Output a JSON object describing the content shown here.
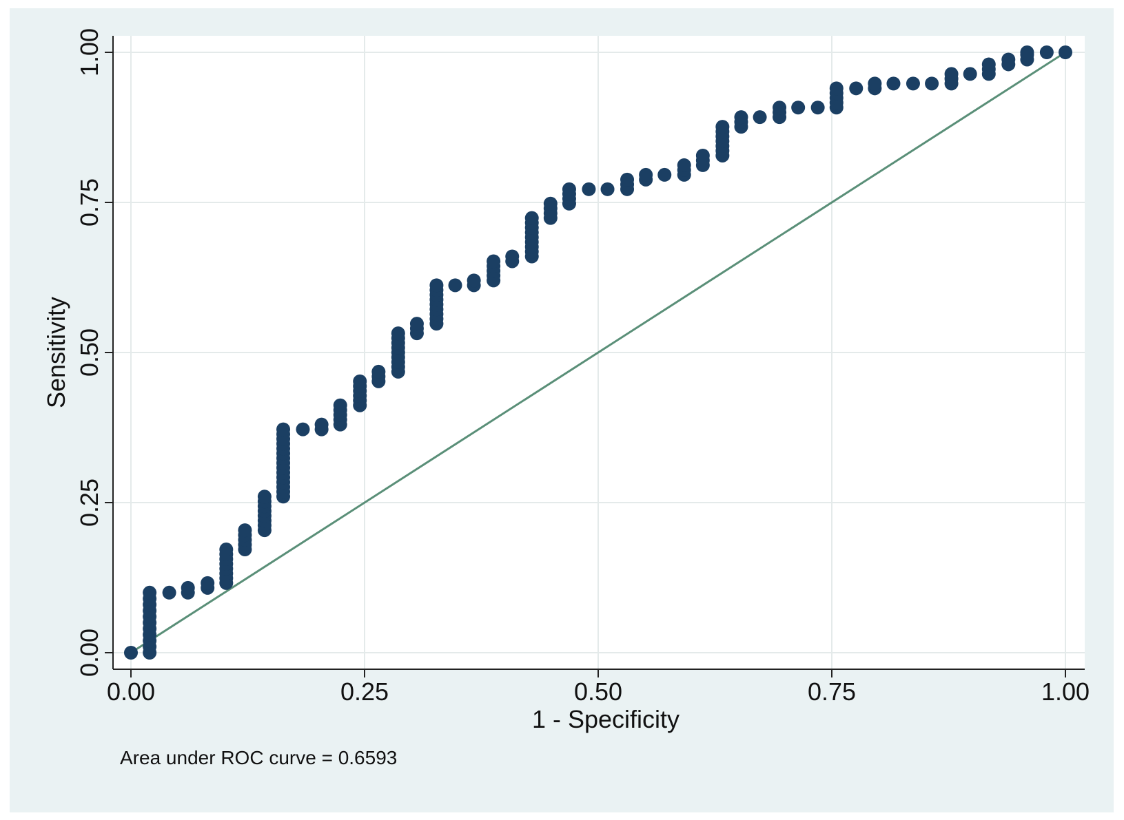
{
  "chart_data": {
    "type": "scatter",
    "title": "",
    "xlabel": "1 - Specificity",
    "ylabel": "Sensitivity",
    "xlim": [
      0,
      1
    ],
    "ylim": [
      0,
      1
    ],
    "x_ticks": [
      "0.00",
      "0.25",
      "0.50",
      "0.75",
      "1.00"
    ],
    "y_ticks": [
      "0.00",
      "0.25",
      "0.50",
      "0.75",
      "1.00"
    ],
    "grid": true,
    "legend": "none",
    "annotation": "Area under ROC curve = 0.6593",
    "colors": {
      "background": "#eaf2f3",
      "plot_area": "#ffffff",
      "points": "#1b3f63",
      "reference_line": "#5a8f78",
      "grid": "#e4eaea"
    },
    "series": [
      {
        "role": "roc-curve",
        "points": [
          [
            0.0,
            0.0
          ],
          [
            0.02,
            0.0
          ],
          [
            0.02,
            0.01
          ],
          [
            0.02,
            0.02
          ],
          [
            0.02,
            0.03
          ],
          [
            0.02,
            0.04
          ],
          [
            0.02,
            0.05
          ],
          [
            0.02,
            0.06
          ],
          [
            0.02,
            0.07
          ],
          [
            0.02,
            0.08
          ],
          [
            0.02,
            0.09
          ],
          [
            0.02,
            0.1
          ],
          [
            0.041,
            0.1
          ],
          [
            0.061,
            0.1
          ],
          [
            0.061,
            0.108
          ],
          [
            0.082,
            0.108
          ],
          [
            0.082,
            0.116
          ],
          [
            0.102,
            0.116
          ],
          [
            0.102,
            0.124
          ],
          [
            0.102,
            0.132
          ],
          [
            0.102,
            0.14
          ],
          [
            0.102,
            0.148
          ],
          [
            0.102,
            0.156
          ],
          [
            0.102,
            0.164
          ],
          [
            0.102,
            0.172
          ],
          [
            0.122,
            0.172
          ],
          [
            0.122,
            0.18
          ],
          [
            0.122,
            0.188
          ],
          [
            0.122,
            0.196
          ],
          [
            0.122,
            0.204
          ],
          [
            0.143,
            0.204
          ],
          [
            0.143,
            0.212
          ],
          [
            0.143,
            0.22
          ],
          [
            0.143,
            0.228
          ],
          [
            0.143,
            0.236
          ],
          [
            0.143,
            0.244
          ],
          [
            0.143,
            0.252
          ],
          [
            0.143,
            0.26
          ],
          [
            0.163,
            0.26
          ],
          [
            0.163,
            0.268
          ],
          [
            0.163,
            0.276
          ],
          [
            0.163,
            0.284
          ],
          [
            0.163,
            0.292
          ],
          [
            0.163,
            0.3
          ],
          [
            0.163,
            0.308
          ],
          [
            0.163,
            0.316
          ],
          [
            0.163,
            0.324
          ],
          [
            0.163,
            0.332
          ],
          [
            0.163,
            0.34
          ],
          [
            0.163,
            0.348
          ],
          [
            0.163,
            0.356
          ],
          [
            0.163,
            0.364
          ],
          [
            0.163,
            0.372
          ],
          [
            0.184,
            0.372
          ],
          [
            0.204,
            0.372
          ],
          [
            0.204,
            0.38
          ],
          [
            0.224,
            0.38
          ],
          [
            0.224,
            0.388
          ],
          [
            0.224,
            0.396
          ],
          [
            0.224,
            0.404
          ],
          [
            0.224,
            0.412
          ],
          [
            0.245,
            0.412
          ],
          [
            0.245,
            0.42
          ],
          [
            0.245,
            0.428
          ],
          [
            0.245,
            0.436
          ],
          [
            0.245,
            0.444
          ],
          [
            0.245,
            0.452
          ],
          [
            0.265,
            0.452
          ],
          [
            0.265,
            0.46
          ],
          [
            0.265,
            0.468
          ],
          [
            0.286,
            0.468
          ],
          [
            0.286,
            0.476
          ],
          [
            0.286,
            0.484
          ],
          [
            0.286,
            0.492
          ],
          [
            0.286,
            0.5
          ],
          [
            0.286,
            0.508
          ],
          [
            0.286,
            0.516
          ],
          [
            0.286,
            0.524
          ],
          [
            0.286,
            0.532
          ],
          [
            0.306,
            0.532
          ],
          [
            0.306,
            0.54
          ],
          [
            0.306,
            0.548
          ],
          [
            0.327,
            0.548
          ],
          [
            0.327,
            0.556
          ],
          [
            0.327,
            0.564
          ],
          [
            0.327,
            0.572
          ],
          [
            0.327,
            0.58
          ],
          [
            0.327,
            0.588
          ],
          [
            0.327,
            0.596
          ],
          [
            0.327,
            0.604
          ],
          [
            0.327,
            0.612
          ],
          [
            0.347,
            0.612
          ],
          [
            0.367,
            0.612
          ],
          [
            0.367,
            0.62
          ],
          [
            0.388,
            0.62
          ],
          [
            0.388,
            0.628
          ],
          [
            0.388,
            0.636
          ],
          [
            0.388,
            0.644
          ],
          [
            0.388,
            0.652
          ],
          [
            0.408,
            0.652
          ],
          [
            0.408,
            0.66
          ],
          [
            0.429,
            0.66
          ],
          [
            0.429,
            0.668
          ],
          [
            0.429,
            0.676
          ],
          [
            0.429,
            0.684
          ],
          [
            0.429,
            0.692
          ],
          [
            0.429,
            0.7
          ],
          [
            0.429,
            0.708
          ],
          [
            0.429,
            0.716
          ],
          [
            0.429,
            0.724
          ],
          [
            0.449,
            0.724
          ],
          [
            0.449,
            0.732
          ],
          [
            0.449,
            0.74
          ],
          [
            0.449,
            0.748
          ],
          [
            0.469,
            0.748
          ],
          [
            0.469,
            0.756
          ],
          [
            0.469,
            0.764
          ],
          [
            0.469,
            0.772
          ],
          [
            0.49,
            0.772
          ],
          [
            0.51,
            0.772
          ],
          [
            0.531,
            0.772
          ],
          [
            0.531,
            0.78
          ],
          [
            0.531,
            0.788
          ],
          [
            0.551,
            0.788
          ],
          [
            0.551,
            0.796
          ],
          [
            0.571,
            0.796
          ],
          [
            0.592,
            0.796
          ],
          [
            0.592,
            0.804
          ],
          [
            0.592,
            0.812
          ],
          [
            0.612,
            0.812
          ],
          [
            0.612,
            0.82
          ],
          [
            0.612,
            0.828
          ],
          [
            0.633,
            0.828
          ],
          [
            0.633,
            0.836
          ],
          [
            0.633,
            0.844
          ],
          [
            0.633,
            0.852
          ],
          [
            0.633,
            0.86
          ],
          [
            0.633,
            0.868
          ],
          [
            0.633,
            0.876
          ],
          [
            0.653,
            0.876
          ],
          [
            0.653,
            0.884
          ],
          [
            0.653,
            0.892
          ],
          [
            0.673,
            0.892
          ],
          [
            0.694,
            0.892
          ],
          [
            0.694,
            0.9
          ],
          [
            0.694,
            0.908
          ],
          [
            0.714,
            0.908
          ],
          [
            0.735,
            0.908
          ],
          [
            0.755,
            0.908
          ],
          [
            0.755,
            0.916
          ],
          [
            0.755,
            0.924
          ],
          [
            0.755,
            0.932
          ],
          [
            0.755,
            0.94
          ],
          [
            0.776,
            0.94
          ],
          [
            0.796,
            0.94
          ],
          [
            0.796,
            0.948
          ],
          [
            0.816,
            0.948
          ],
          [
            0.837,
            0.948
          ],
          [
            0.857,
            0.948
          ],
          [
            0.878,
            0.948
          ],
          [
            0.878,
            0.956
          ],
          [
            0.878,
            0.964
          ],
          [
            0.898,
            0.964
          ],
          [
            0.918,
            0.964
          ],
          [
            0.918,
            0.972
          ],
          [
            0.918,
            0.98
          ],
          [
            0.939,
            0.98
          ],
          [
            0.939,
            0.988
          ],
          [
            0.959,
            0.988
          ],
          [
            0.959,
            0.996
          ],
          [
            0.959,
            1.0
          ],
          [
            0.98,
            1.0
          ],
          [
            1.0,
            1.0
          ]
        ]
      },
      {
        "role": "reference-line",
        "points": [
          [
            0,
            0
          ],
          [
            1,
            1
          ]
        ]
      }
    ]
  }
}
